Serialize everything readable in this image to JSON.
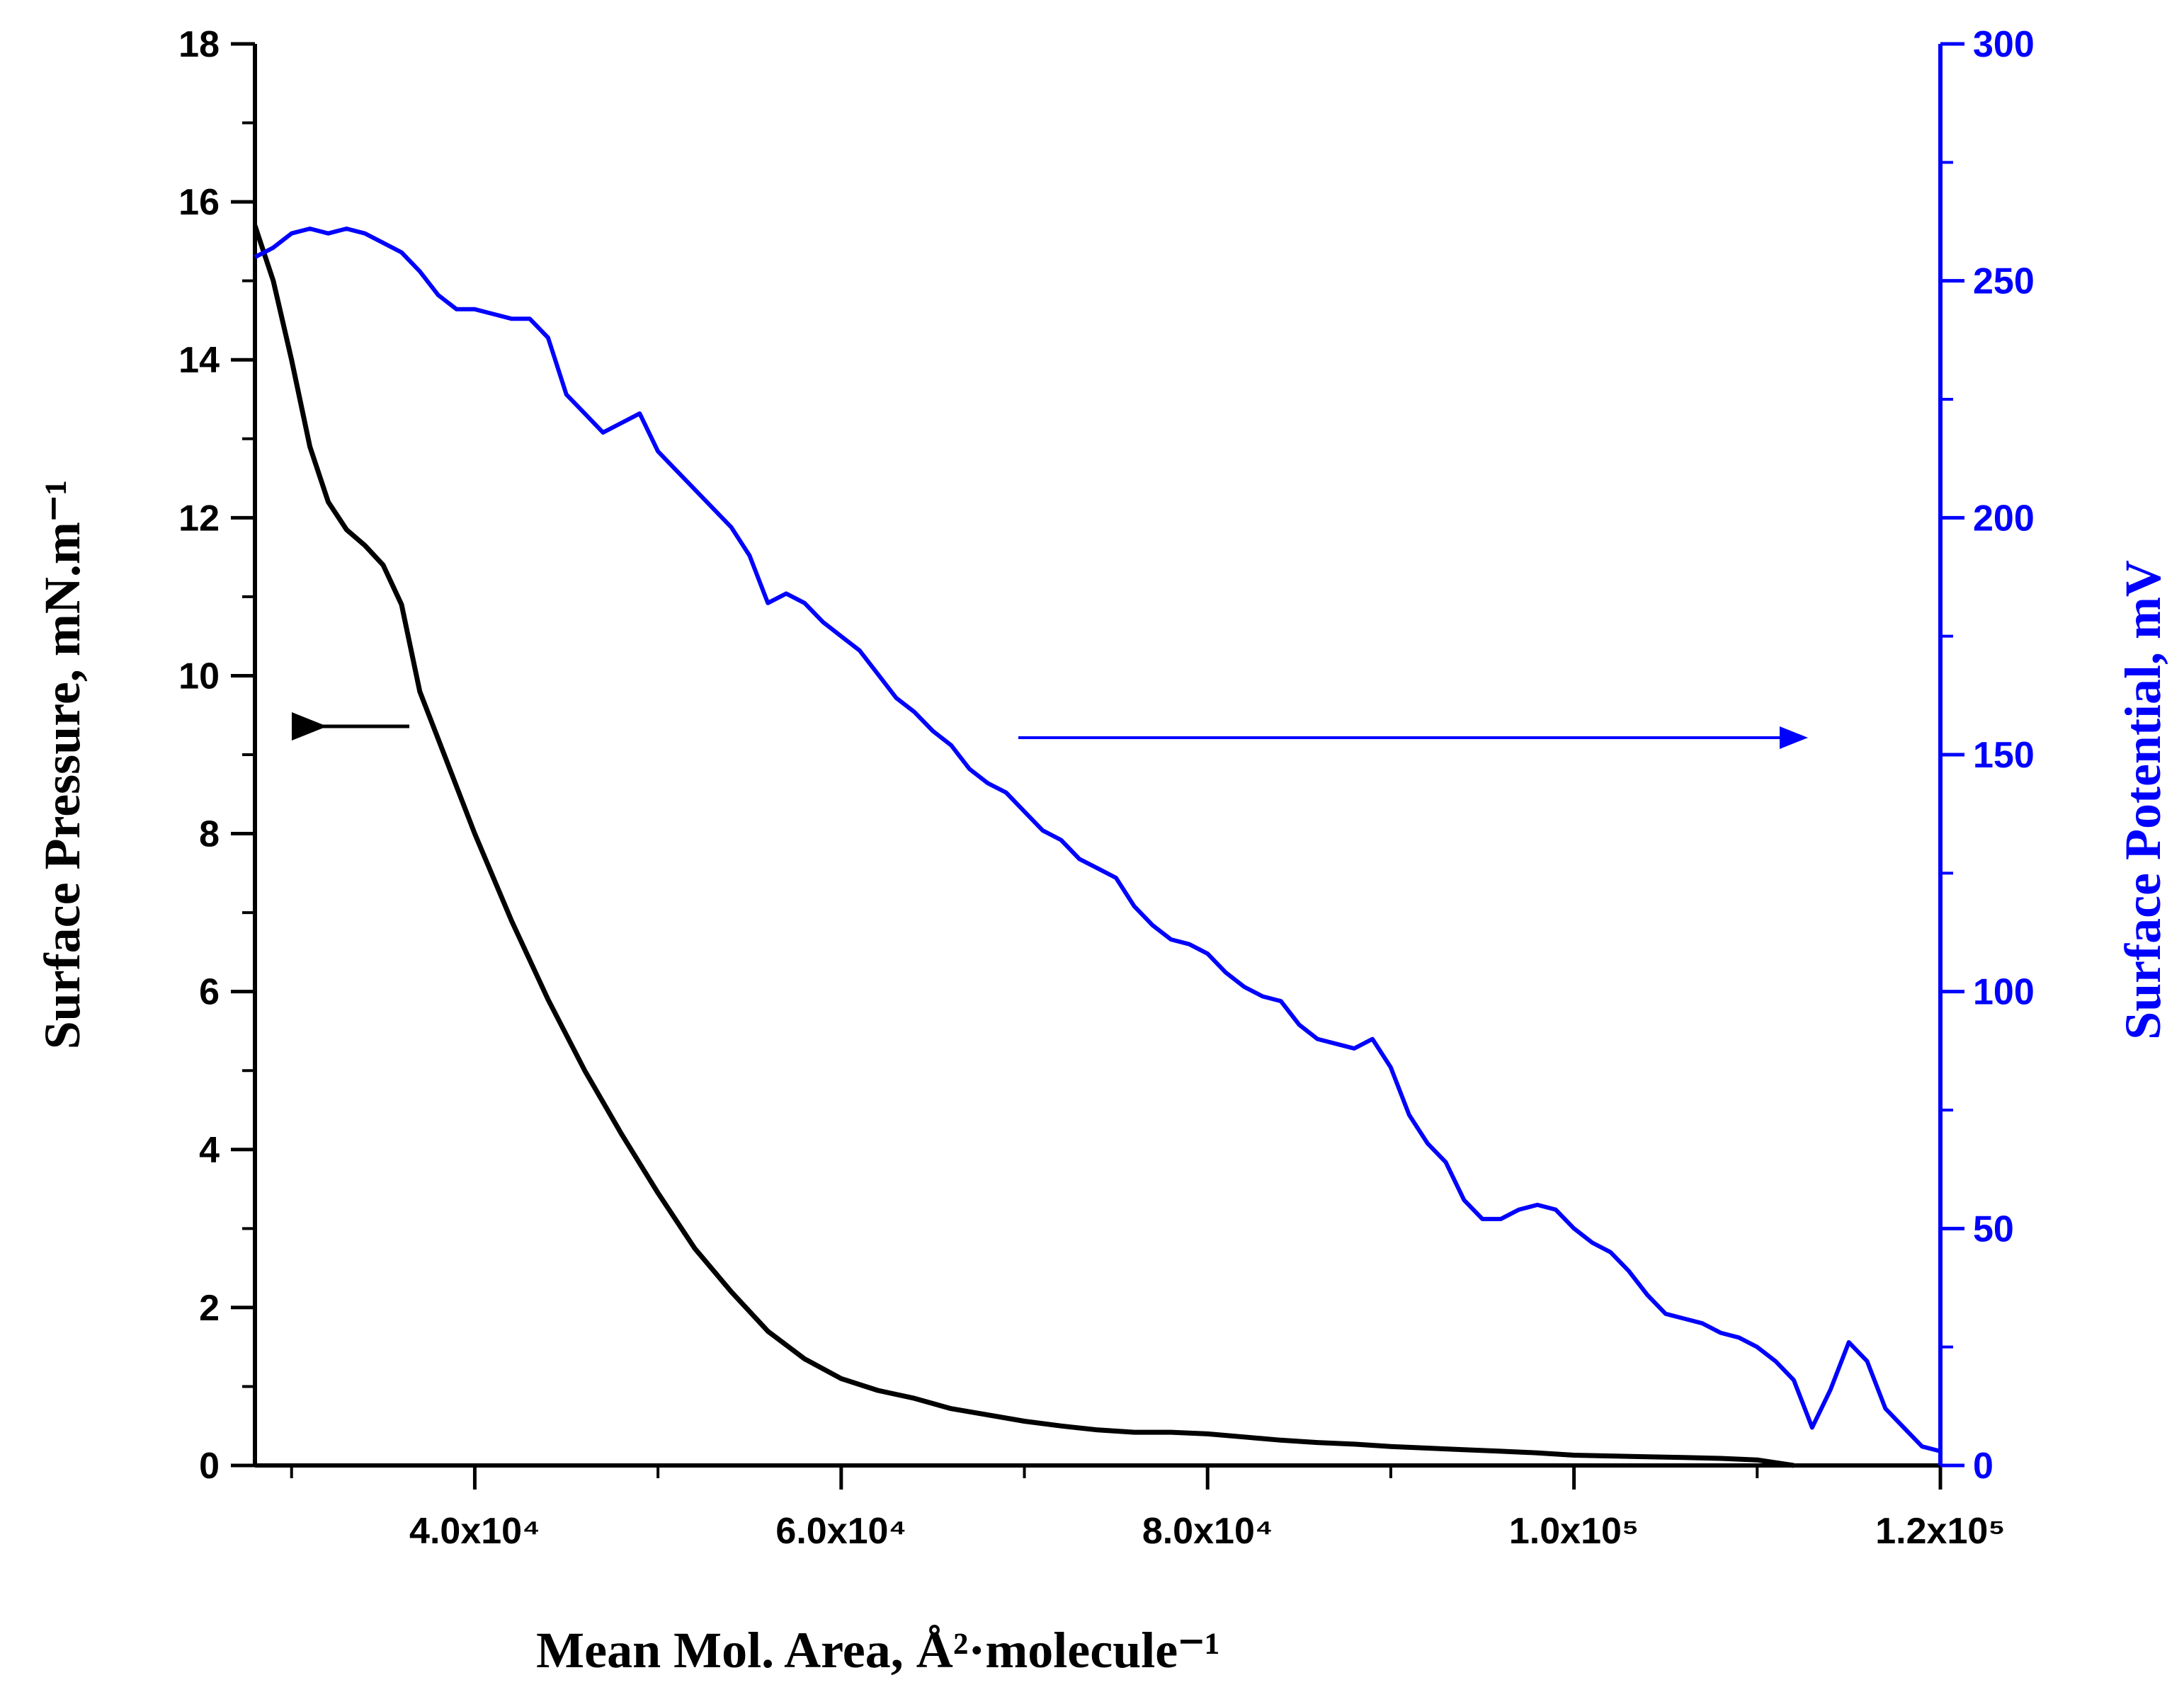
{
  "chart_data": {
    "type": "line",
    "title": "",
    "xlabel": "Mean Mol. Area, Å²·molecule⁻¹",
    "ylabel_left": "Surface Pressure, mN.m⁻¹",
    "ylabel_right": "Surface Potential, mV",
    "xlim": [
      28000,
      120000
    ],
    "ylim_left": [
      0,
      18
    ],
    "ylim_right": [
      0,
      300
    ],
    "x_ticks": [
      {
        "value": 40000,
        "label": "4.0x10⁴"
      },
      {
        "value": 60000,
        "label": "6.0x10⁴"
      },
      {
        "value": 80000,
        "label": "8.0x10⁴"
      },
      {
        "value": 100000,
        "label": "1.0x10⁵"
      },
      {
        "value": 120000,
        "label": "1.2x10⁵"
      }
    ],
    "y_left_ticks": [
      "0",
      "2",
      "4",
      "6",
      "8",
      "10",
      "12",
      "14",
      "16",
      "18"
    ],
    "y_right_ticks": [
      "0",
      "50",
      "100",
      "150",
      "200",
      "250",
      "300"
    ],
    "grid": false,
    "colors": {
      "pressure": "#000000",
      "potential": "#0000ff"
    },
    "series": [
      {
        "name": "Surface Pressure",
        "axis": "left",
        "x": [
          28000,
          29000,
          30000,
          31000,
          32000,
          33000,
          34000,
          35000,
          36000,
          37000,
          38000,
          40000,
          42000,
          44000,
          46000,
          48000,
          50000,
          52000,
          54000,
          56000,
          58000,
          60000,
          62000,
          64000,
          66000,
          68000,
          70000,
          72000,
          74000,
          76000,
          78000,
          80000,
          82000,
          84000,
          86000,
          88000,
          90000,
          92000,
          94000,
          96000,
          98000,
          100000,
          102000,
          104000,
          106000,
          108000,
          110000,
          112000
        ],
        "values": [
          15.7,
          15.0,
          14.0,
          12.9,
          12.2,
          11.85,
          11.65,
          11.4,
          10.9,
          9.8,
          9.2,
          8.0,
          6.9,
          5.9,
          5.0,
          4.2,
          3.45,
          2.75,
          2.2,
          1.7,
          1.35,
          1.1,
          0.95,
          0.85,
          0.72,
          0.64,
          0.56,
          0.5,
          0.45,
          0.42,
          0.42,
          0.4,
          0.36,
          0.32,
          0.29,
          0.27,
          0.24,
          0.22,
          0.2,
          0.18,
          0.16,
          0.13,
          0.12,
          0.11,
          0.1,
          0.09,
          0.07,
          0.0
        ]
      },
      {
        "name": "Surface Potential",
        "axis": "right",
        "x": [
          28000,
          29000,
          30000,
          31000,
          32000,
          33000,
          34000,
          35000,
          36000,
          37000,
          38000,
          39000,
          40000,
          41000,
          42000,
          43000,
          44000,
          45000,
          46000,
          47000,
          48000,
          49000,
          50000,
          51000,
          52000,
          53000,
          54000,
          55000,
          56000,
          57000,
          58000,
          59000,
          60000,
          61000,
          62000,
          63000,
          64000,
          65000,
          66000,
          67000,
          68000,
          69000,
          70000,
          71000,
          72000,
          73000,
          74000,
          75000,
          76000,
          77000,
          78000,
          79000,
          80000,
          81000,
          82000,
          83000,
          84000,
          85000,
          86000,
          87000,
          88000,
          89000,
          90000,
          91000,
          92000,
          93000,
          94000,
          95000,
          96000,
          97000,
          98000,
          99000,
          100000,
          101000,
          102000,
          103000,
          104000,
          105000,
          106000,
          107000,
          108000,
          109000,
          110000,
          111000,
          112000,
          113000,
          114000,
          115000,
          116000,
          117000,
          118000,
          119000,
          120000
        ],
        "values": [
          255,
          257,
          260,
          261,
          260,
          261,
          260,
          258,
          256,
          252,
          247,
          244,
          244,
          243,
          242,
          242,
          238,
          226,
          222,
          218,
          220,
          222,
          214,
          210,
          206,
          202,
          198,
          192,
          182,
          184,
          182,
          178,
          175,
          172,
          167,
          162,
          159,
          155,
          152,
          147,
          144,
          142,
          138,
          134,
          132,
          128,
          126,
          124,
          118,
          114,
          111,
          110,
          108,
          104,
          101,
          99,
          98,
          93,
          90,
          89,
          88,
          90,
          84,
          74,
          68,
          64,
          56,
          52,
          52,
          54,
          55,
          54,
          50,
          47,
          45,
          41,
          36,
          32,
          31,
          30,
          28,
          27,
          25,
          22,
          18,
          8,
          16,
          26,
          22,
          12,
          8,
          4,
          3
        ]
      }
    ],
    "annotations": [
      {
        "type": "arrow",
        "series": "Surface Pressure",
        "points_to": "left axis"
      },
      {
        "type": "arrow",
        "series": "Surface Potential",
        "points_to": "right axis"
      }
    ]
  }
}
